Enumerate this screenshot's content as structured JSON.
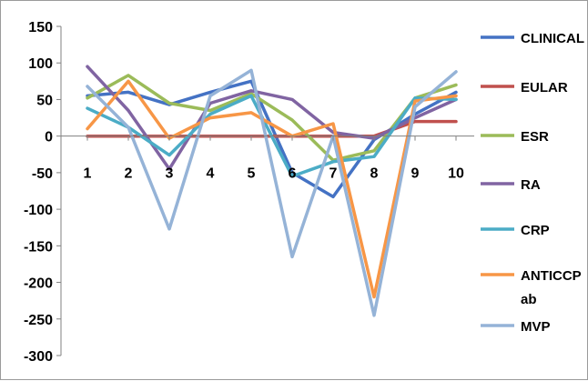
{
  "chart_data": {
    "type": "line",
    "categories": [
      "1",
      "2",
      "3",
      "4",
      "5",
      "6",
      "7",
      "8",
      "9",
      "10"
    ],
    "ylim": [
      -300,
      150
    ],
    "yticks": [
      "150",
      "100",
      "50",
      "0",
      "-50",
      "-100",
      "-150",
      "-200",
      "-250",
      "-300"
    ],
    "legend_position": "right",
    "grid": false,
    "title": "",
    "xlabel": "",
    "ylabel": "",
    "series": [
      {
        "name": "CLINICAL",
        "color": "#4472c4",
        "values": [
          55,
          60,
          43,
          60,
          75,
          -50,
          -83,
          -5,
          30,
          60
        ]
      },
      {
        "name": "EULAR",
        "color": "#c0504d",
        "values": [
          0,
          0,
          0,
          0,
          0,
          0,
          0,
          0,
          20,
          20
        ]
      },
      {
        "name": "ESR",
        "color": "#9bbb59",
        "values": [
          52,
          83,
          45,
          35,
          58,
          22,
          -33,
          -20,
          52,
          70
        ]
      },
      {
        "name": "RA",
        "color": "#8064a2",
        "values": [
          95,
          35,
          -45,
          45,
          62,
          50,
          5,
          -3,
          25,
          50
        ]
      },
      {
        "name": "CRP",
        "color": "#4bacc6",
        "values": [
          38,
          12,
          -26,
          30,
          55,
          -55,
          -35,
          -28,
          52,
          50
        ]
      },
      {
        "name": "ANTICCP ab",
        "color": "#f79646",
        "values": [
          10,
          75,
          -3,
          25,
          32,
          0,
          17,
          -220,
          48,
          55
        ]
      },
      {
        "name": "MVP",
        "color": "#95b3d7",
        "values": [
          68,
          12,
          -127,
          55,
          90,
          -165,
          0,
          -245,
          40,
          88
        ]
      }
    ]
  }
}
